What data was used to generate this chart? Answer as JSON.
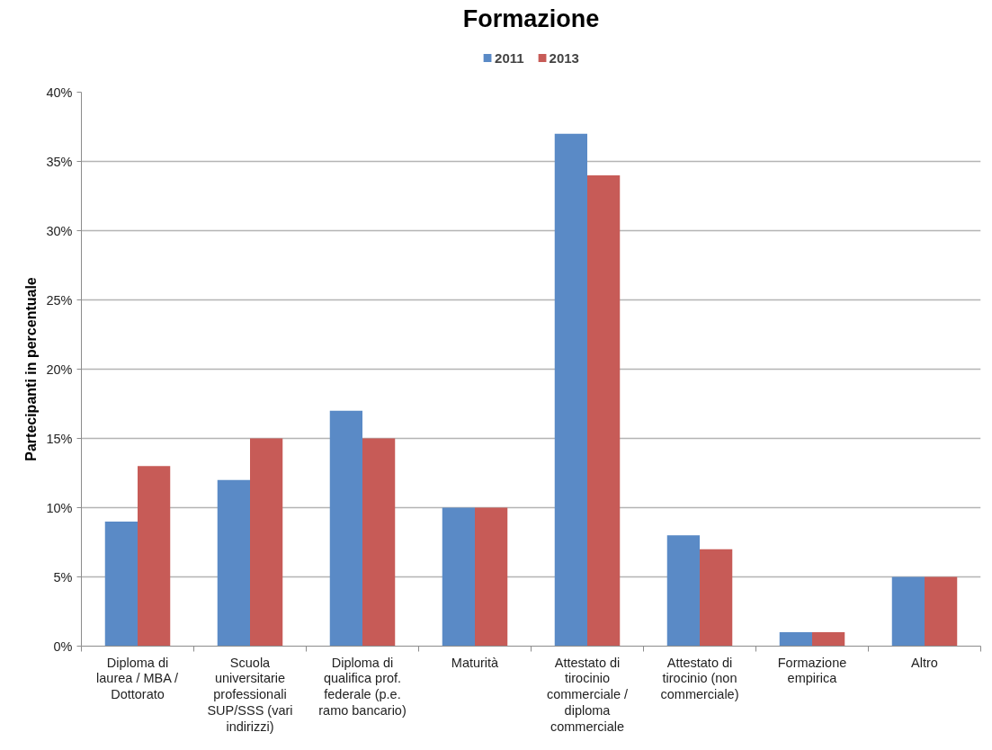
{
  "chart_data": {
    "type": "bar",
    "title": "Formazione",
    "ylabel": "Partecipanti in percentuale",
    "categories": [
      "Diploma di laurea / MBA / Dottorato",
      "Scuola universitarie professionali SUP/SSS (vari indirizzi)",
      "Diploma di qualifica prof. federale (p.e. ramo bancario)",
      "Maturità",
      "Attestato di tirocinio commerciale / diploma commerciale",
      "Attestato di tirocinio (non commerciale)",
      "Formazione empirica",
      "Altro"
    ],
    "series": [
      {
        "name": "2011",
        "color": "#5a8ac6",
        "values": [
          9,
          12,
          17,
          10,
          37,
          8,
          1,
          5
        ]
      },
      {
        "name": "2013",
        "color": "#c75b57",
        "values": [
          13,
          15,
          15,
          10,
          34,
          7,
          1,
          5
        ]
      }
    ],
    "ylim": [
      0,
      40
    ],
    "yticks": [
      {
        "value": 0,
        "label": "0%"
      },
      {
        "value": 5,
        "label": "5%"
      },
      {
        "value": 10,
        "label": "10%"
      },
      {
        "value": 15,
        "label": "15%"
      },
      {
        "value": 20,
        "label": "20%"
      },
      {
        "value": 25,
        "label": "25%"
      },
      {
        "value": 30,
        "label": "30%"
      },
      {
        "value": 35,
        "label": "35%"
      },
      {
        "value": 40,
        "label": "40%"
      }
    ],
    "grid": "y",
    "legend": "top"
  }
}
